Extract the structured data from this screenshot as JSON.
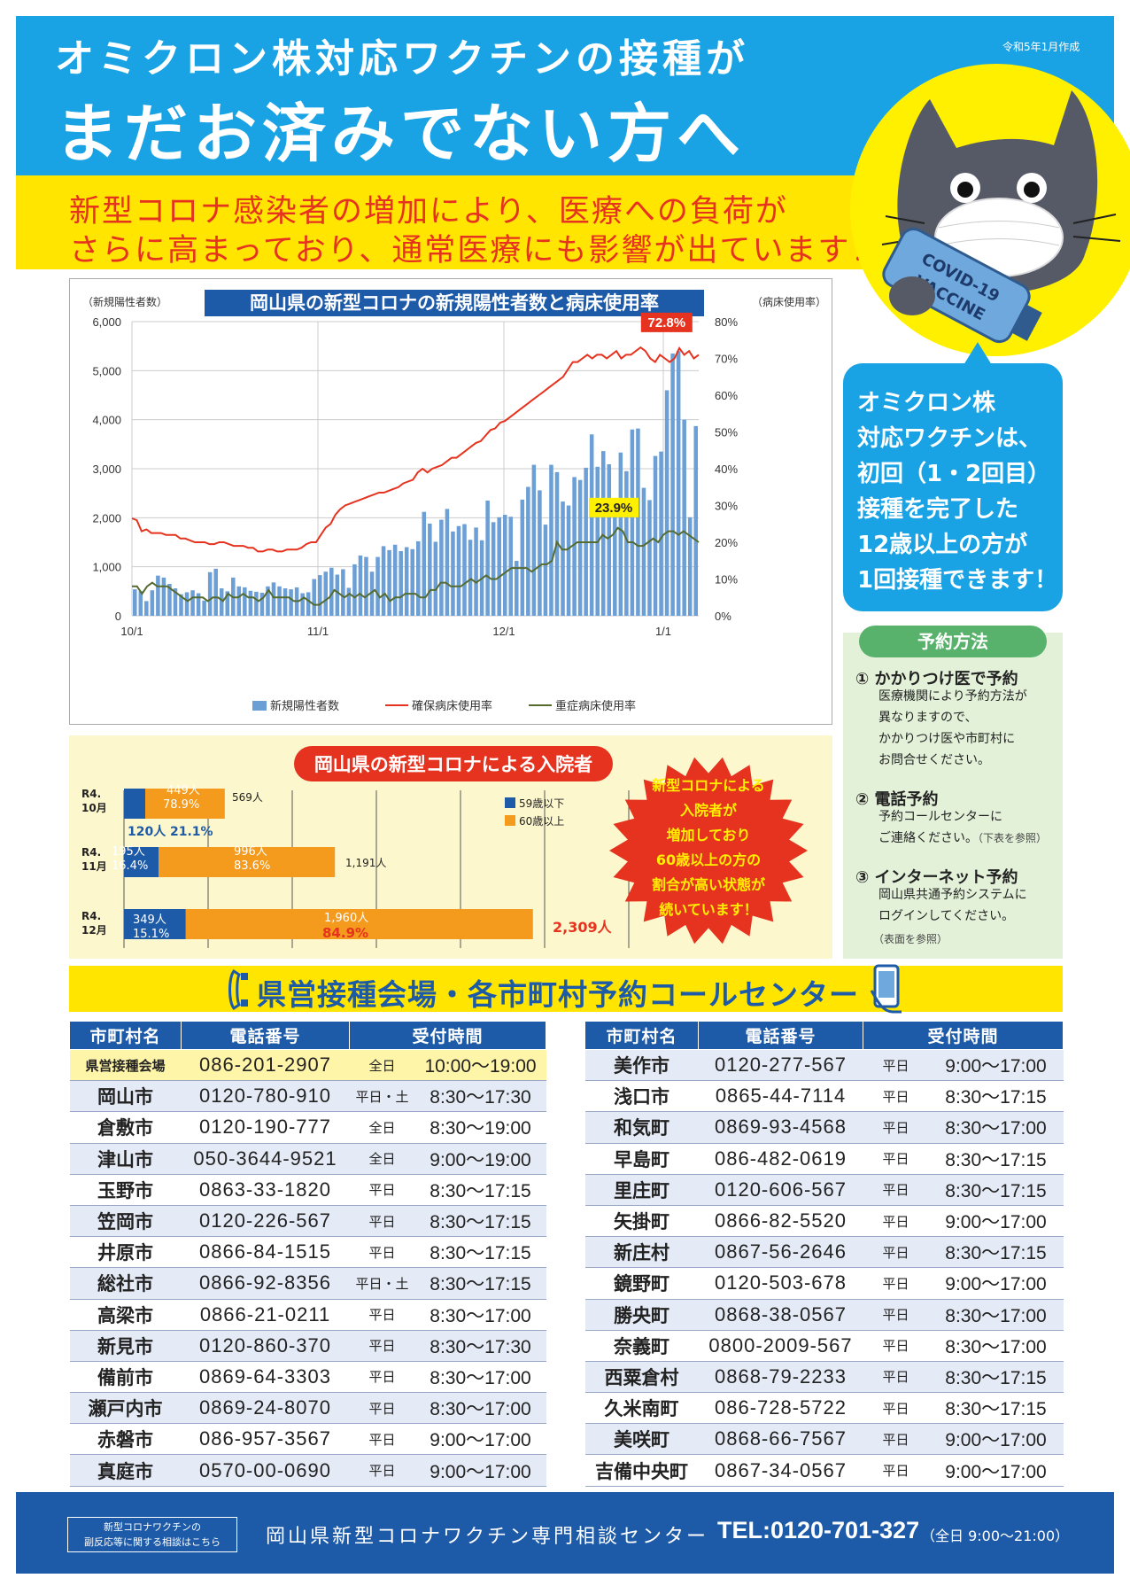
{
  "header": {
    "line1": "オミクロン株対応ワクチンの接種が",
    "line2": "まだお済みでない方へ",
    "created": "令和5年1月作成",
    "warning_line1": "新型コロナ感染者の増加により、医療への負荷が",
    "warning_line2": "さらに高まっており、通常医療にも影響が出ています！"
  },
  "colors": {
    "sky_blue": "#1aa3e4",
    "yellow": "#ffe500",
    "red": "#e6331f",
    "navy": "#1d5aa8",
    "orange": "#f49a1c",
    "green": "#58b26b"
  },
  "illustration": {
    "label_line1": "COVID-19",
    "label_line2": "VACCINE"
  },
  "bubble": {
    "lines": [
      "オミクロン株",
      "対応ワクチンは、",
      "初回（1・2回目）",
      "接種を完了した",
      "12歳以上の方が",
      "1回接種できます！"
    ]
  },
  "chart_data": [
    {
      "type": "bar",
      "title": "岡山県の新型コロナの新規陽性者数と病床使用率",
      "ylabel": "（新規陽性者数）",
      "y2label": "（病床使用率）",
      "ylim": [
        0,
        6000
      ],
      "y2lim": [
        0,
        80
      ],
      "yticks": [
        "6,000",
        "5,000",
        "4,000",
        "3,000",
        "2,000",
        "1,000",
        "0"
      ],
      "y2ticks": [
        "80%",
        "70%",
        "60%",
        "50%",
        "40%",
        "30%",
        "20%",
        "10%",
        "0%"
      ],
      "xticks": [
        "10/1",
        "11/1",
        "12/1",
        "1/1"
      ],
      "legend": [
        "新規陽性者数",
        "確保病床使用率",
        "重症病床使用率"
      ],
      "annotations": [
        "72.8%",
        "23.9%"
      ],
      "grid": true,
      "series": [
        {
          "name": "新規陽性者数",
          "values": [
            540,
            500,
            300,
            520,
            820,
            780,
            650,
            560,
            440,
            480,
            520,
            460,
            310,
            890,
            960,
            560,
            500,
            780,
            600,
            580,
            510,
            490,
            470,
            600,
            680,
            600,
            560,
            540,
            580,
            460,
            480,
            750,
            830,
            900,
            980,
            840,
            950,
            570,
            1050,
            1230,
            1200,
            900,
            1200,
            1420,
            1340,
            1450,
            1320,
            1400,
            1360,
            1520,
            2120,
            1880,
            1510,
            1960,
            2180,
            1720,
            1830,
            1870,
            1550,
            1800,
            1540,
            2350,
            1910,
            2010,
            2060,
            2020,
            1120,
            2370,
            2630,
            3080,
            2560,
            1860,
            3080,
            2930,
            2330,
            2250,
            2830,
            2770,
            3020,
            3700,
            3040,
            3360,
            3090,
            2160,
            3330,
            2950,
            3800,
            3820,
            2610,
            2360,
            3260,
            3350,
            4600,
            5350,
            5400,
            4000,
            2010,
            3870
          ]
        },
        {
          "name": "確保病床使用率",
          "values": [
            26.5,
            26,
            23,
            23.5,
            22.5,
            22.5,
            22.5,
            22,
            22,
            22,
            21,
            21,
            20.5,
            20,
            20,
            20,
            19.5,
            19.5,
            20,
            20,
            19.5,
            19,
            19,
            19,
            18.5,
            18.5,
            17.5,
            17.5,
            18,
            18,
            17.5,
            17.5,
            18,
            18,
            18,
            18.5,
            19.5,
            20,
            20,
            22,
            24,
            25,
            27.5,
            29,
            30,
            30.5,
            31,
            31.5,
            32,
            32.5,
            33,
            33.5,
            33.5,
            34,
            34.5,
            35,
            36,
            36.5,
            37,
            39,
            40,
            39,
            40,
            40.5,
            41,
            42,
            43,
            43,
            44,
            45,
            46,
            47,
            47.5,
            49,
            50.5,
            51,
            52.5,
            53,
            54,
            55,
            56,
            57,
            58,
            59,
            60,
            61,
            62,
            63,
            64,
            65,
            67,
            69,
            69,
            70,
            71,
            70,
            71,
            71,
            70,
            71,
            72,
            70,
            71,
            71,
            72,
            73,
            72,
            70,
            69,
            71,
            70,
            69,
            70,
            72.8,
            71,
            72,
            70,
            71
          ]
        },
        {
          "name": "重症病床使用率",
          "values": [
            8,
            8,
            6,
            8,
            9,
            8,
            8,
            8,
            7,
            6,
            5,
            4,
            5,
            5,
            5,
            4,
            5,
            5,
            4,
            6,
            5,
            5,
            6,
            5,
            5,
            4,
            5,
            7,
            5,
            5,
            5,
            5,
            4,
            4,
            5,
            4,
            3,
            3,
            4,
            5,
            7,
            6,
            5,
            6,
            5,
            6,
            5,
            6,
            7,
            5,
            6,
            4,
            5,
            5,
            6,
            6,
            6,
            5,
            5,
            7,
            7,
            9,
            9,
            8,
            8,
            8,
            9,
            10,
            9,
            10,
            11,
            10,
            10,
            11,
            12,
            13,
            13,
            13,
            13,
            12,
            13,
            14,
            14,
            15,
            20,
            18,
            18,
            19,
            20,
            20,
            20,
            20,
            20,
            22,
            21,
            22,
            23.9,
            23,
            20,
            20,
            19,
            19,
            20,
            21,
            20,
            22,
            23,
            23,
            22,
            23,
            22,
            21,
            20
          ]
        }
      ]
    },
    {
      "type": "bar",
      "title": "岡山県の新型コロナによる入院者",
      "categories": [
        "R4.\n10月",
        "R4.\n11月",
        "R4.\n12月"
      ],
      "series": [
        {
          "name": "59歳以下",
          "values": [
            120,
            195,
            349
          ],
          "shares": [
            "21.1%",
            "16.4%",
            "15.1%"
          ]
        },
        {
          "name": "60歳以上",
          "values": [
            449,
            996,
            1960
          ],
          "shares": [
            "78.9%",
            "83.6%",
            "84.9%"
          ]
        }
      ],
      "totals": [
        569,
        1191,
        2309
      ]
    }
  ],
  "hospital_labels": {
    "oct_under": "120人",
    "oct_under_pct": "21.1%",
    "oct_over": "449人",
    "oct_over_pct": "78.9%",
    "oct_total": "569人",
    "nov_under": "195人",
    "nov_under_pct": "16.4%",
    "nov_over": "996人",
    "nov_over_pct": "83.6%",
    "nov_total": "1,191人",
    "dec_under": "349人",
    "dec_under_pct": "15.1%",
    "dec_over": "1,960人",
    "dec_over_pct": "84.9%",
    "dec_total": "2,309人",
    "cat_oct": "R4.",
    "cat_oct2": "10月",
    "cat_nov": "R4.",
    "cat_nov2": "11月",
    "cat_dec": "R4.",
    "cat_dec2": "12月",
    "legend_under": "59歳以下",
    "legend_over": "60歳以上"
  },
  "burst": {
    "lines": [
      "新型コロナによる",
      "入院者が",
      "増加しており",
      "60歳以上の方の",
      "割合が高い状態が",
      "続いています！"
    ]
  },
  "reservation": {
    "title": "予約方法",
    "items": [
      {
        "heading": "① かかりつけ医で予約",
        "lines": [
          "医療機関により予約方法が",
          "異なりますので、",
          "かかりつけ医や市町村に",
          "お問合せください。"
        ]
      },
      {
        "heading": "② 電話予約",
        "lines": [
          "予約コールセンターに",
          "ご連絡ください。"
        ],
        "note": "（下表を参照）"
      },
      {
        "heading": "③ インターネット予約",
        "lines": [
          "岡山県共通予約システムに",
          "ログインしてください。"
        ],
        "note": "（表面を参照）"
      }
    ]
  },
  "call_center": {
    "title": "県営接種会場・各市町村予約コールセンター",
    "headers": [
      "市町村名",
      "電話番号",
      "受付時間"
    ],
    "left": [
      [
        "県営接種会場",
        "086-201-2907",
        "全日",
        "10:00〜19:00"
      ],
      [
        "岡山市",
        "0120-780-910",
        "平日・土",
        "8:30〜17:30"
      ],
      [
        "倉敷市",
        "0120-190-777",
        "全日",
        "8:30〜19:00"
      ],
      [
        "津山市",
        "050-3644-9521",
        "全日",
        "9:00〜19:00"
      ],
      [
        "玉野市",
        "0863-33-1820",
        "平日",
        "8:30〜17:15"
      ],
      [
        "笠岡市",
        "0120-226-567",
        "平日",
        "8:30〜17:15"
      ],
      [
        "井原市",
        "0866-84-1515",
        "平日",
        "8:30〜17:15"
      ],
      [
        "総社市",
        "0866-92-8356",
        "平日・土",
        "8:30〜17:15"
      ],
      [
        "高梁市",
        "0866-21-0211",
        "平日",
        "8:30〜17:00"
      ],
      [
        "新見市",
        "0120-860-370",
        "平日",
        "8:30〜17:30"
      ],
      [
        "備前市",
        "0869-64-3303",
        "平日",
        "8:30〜17:00"
      ],
      [
        "瀬戸内市",
        "0869-24-8070",
        "平日",
        "8:30〜17:00"
      ],
      [
        "赤磐市",
        "086-957-3567",
        "平日",
        "9:00〜17:00"
      ],
      [
        "真庭市",
        "0570-00-0690",
        "平日",
        "9:00〜17:00"
      ]
    ],
    "right": [
      [
        "美作市",
        "0120-277-567",
        "平日",
        "9:00〜17:00"
      ],
      [
        "浅口市",
        "0865-44-7114",
        "平日",
        "8:30〜17:15"
      ],
      [
        "和気町",
        "0869-93-4568",
        "平日",
        "8:30〜17:00"
      ],
      [
        "早島町",
        "086-482-0619",
        "平日",
        "8:30〜17:15"
      ],
      [
        "里庄町",
        "0120-606-567",
        "平日",
        "8:30〜17:15"
      ],
      [
        "矢掛町",
        "0866-82-5520",
        "平日",
        "9:00〜17:00"
      ],
      [
        "新庄村",
        "0867-56-2646",
        "平日",
        "8:30〜17:15"
      ],
      [
        "鏡野町",
        "0120-503-678",
        "平日",
        "9:00〜17:00"
      ],
      [
        "勝央町",
        "0868-38-0567",
        "平日",
        "8:30〜17:00"
      ],
      [
        "奈義町",
        "0800-2009-567",
        "平日",
        "8:30〜17:00"
      ],
      [
        "西粟倉村",
        "0868-79-2233",
        "平日",
        "8:30〜17:15"
      ],
      [
        "久米南町",
        "086-728-5722",
        "平日",
        "8:30〜17:15"
      ],
      [
        "美咲町",
        "0868-66-7567",
        "平日",
        "9:00〜17:00"
      ],
      [
        "吉備中央町",
        "0867-34-0567",
        "平日",
        "9:00〜17:00"
      ]
    ]
  },
  "footer": {
    "note_line1": "新型コロナワクチンの",
    "note_line2": "副反応等に関する相談はこちら",
    "center": "岡山県新型コロナワクチン専門相談センター",
    "tel": "TEL:0120-701-327",
    "hours": "（全日 9:00〜21:00）"
  }
}
